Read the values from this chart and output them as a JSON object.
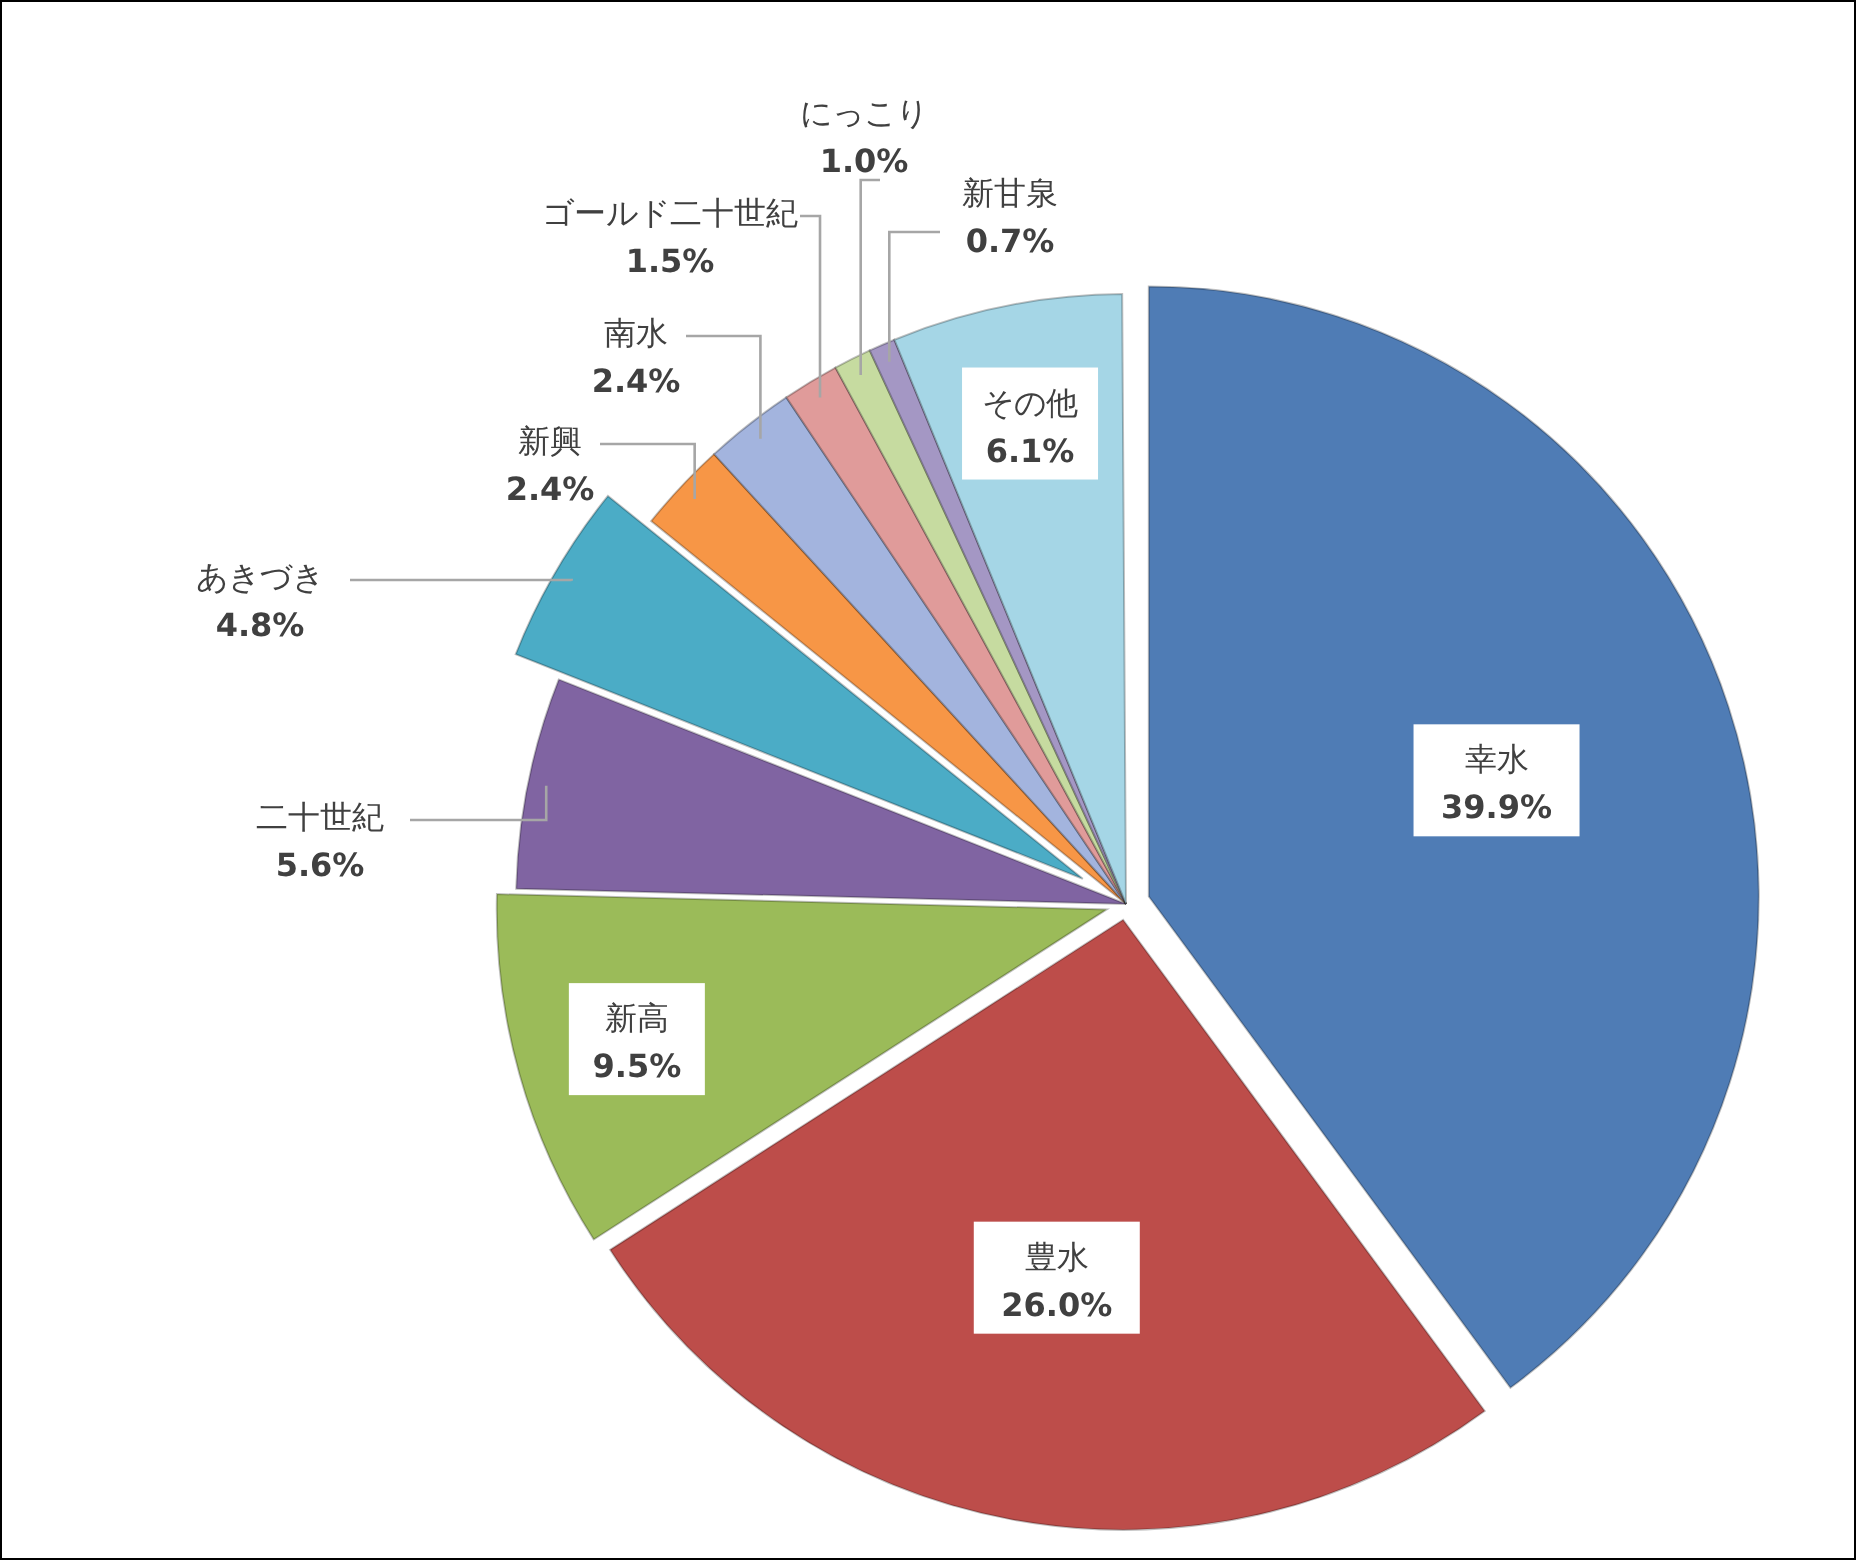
{
  "chart_data": {
    "type": "pie",
    "categories": [
      "幸水",
      "豊水",
      "新高",
      "二十世紀",
      "あきづき",
      "新興",
      "南水",
      "ゴールド二十世紀",
      "にっこり",
      "新甘泉",
      "その他"
    ],
    "values": [
      39.9,
      26.0,
      9.5,
      5.6,
      4.8,
      2.4,
      2.4,
      1.5,
      1.0,
      0.7,
      6.1
    ],
    "colors": [
      "#4f7cb5",
      "#bd4d4a",
      "#9bbb59",
      "#8064a2",
      "#4bacc6",
      "#f79646",
      "#a3b4de",
      "#e09b9a",
      "#c6dba0",
      "#a497c4",
      "#a5d6e6"
    ],
    "value_labels": [
      "39.9%",
      "26.0%",
      "9.5%",
      "5.6%",
      "4.8%",
      "2.4%",
      "2.4%",
      "1.5%",
      "1.0%",
      "0.7%",
      "6.1%"
    ]
  }
}
